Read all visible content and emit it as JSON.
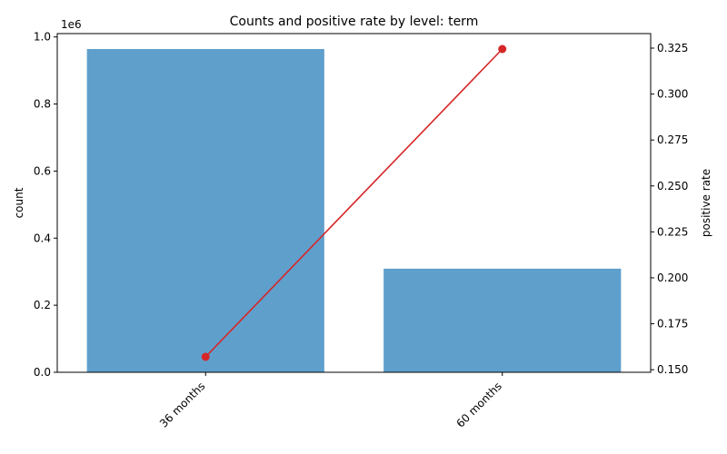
{
  "chart_data": {
    "type": "bar",
    "title": "Counts and positive rate by level: term",
    "categories": [
      "36 months",
      "60 months"
    ],
    "bar_series": {
      "name": "count",
      "values": [
        964000,
        309000
      ],
      "color": "#5f9fcc"
    },
    "line_series": {
      "name": "positive rate",
      "values": [
        0.157,
        0.3245
      ],
      "color": "#d62728"
    },
    "left_axis": {
      "label": "count",
      "ylim": [
        0,
        1010000
      ],
      "ticks": [
        0,
        200000,
        400000,
        600000,
        800000,
        1000000
      ],
      "tick_labels": [
        "0.0",
        "0.2",
        "0.4",
        "0.6",
        "0.8",
        "1.0"
      ],
      "offset_label": "1e6"
    },
    "right_axis": {
      "label": "positive rate",
      "ylim": [
        0.1486,
        0.3329
      ],
      "ticks": [
        0.15,
        0.175,
        0.2,
        0.225,
        0.25,
        0.275,
        0.3,
        0.325
      ],
      "tick_labels": [
        "0.150",
        "0.175",
        "0.200",
        "0.225",
        "0.250",
        "0.275",
        "0.300",
        "0.325"
      ]
    },
    "grid": false,
    "legend": "none"
  }
}
